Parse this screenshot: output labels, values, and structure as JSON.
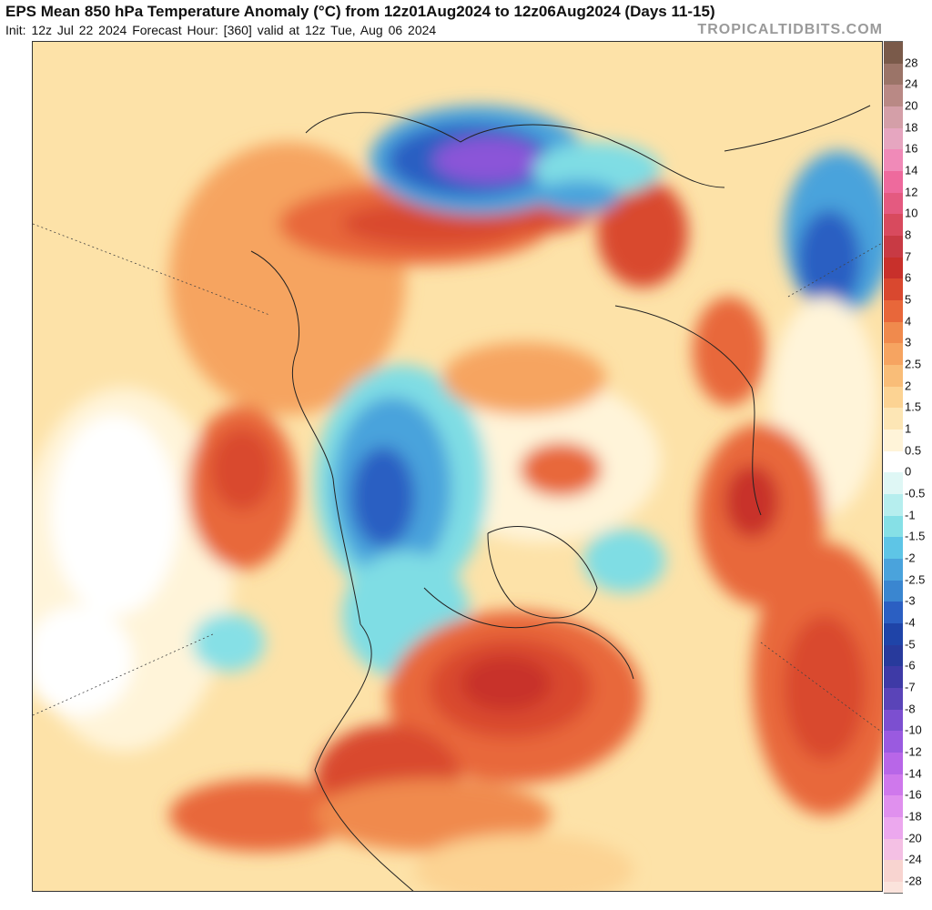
{
  "header": {
    "title": "EPS Mean 850 hPa Temperature Anomaly (°C) from 12z01Aug2024 to 12z06Aug2024 (Days 11-15)",
    "subtitle": "Init: 12z Jul 22 2024   Forecast Hour: [360]   valid at 12z Tue, Aug 06 2024",
    "credit": "TROPICALTIDBITS.COM"
  },
  "colors": {
    "neutral": "#fff4d9",
    "weak_warm": "#fde2a8",
    "warm": "#f6b56b",
    "hot": "#e8673a",
    "very_hot": "#c8302b",
    "weak_cool": "#c9f2f2",
    "cool": "#7fdde4",
    "cold": "#4aa3dc",
    "very_cold": "#2b5fc2",
    "extreme_cold": "#8b54d8"
  },
  "colorbar": {
    "levels": [
      {
        "label": "28",
        "color": "#7a5a4a"
      },
      {
        "label": "24",
        "color": "#9b7468"
      },
      {
        "label": "20",
        "color": "#b98985"
      },
      {
        "label": "18",
        "color": "#d49fa8"
      },
      {
        "label": "16",
        "color": "#e6a6c0"
      },
      {
        "label": "14",
        "color": "#f08ab8"
      },
      {
        "label": "12",
        "color": "#ee6a9d"
      },
      {
        "label": "10",
        "color": "#e45a80"
      },
      {
        "label": "8",
        "color": "#d84a5e"
      },
      {
        "label": "7",
        "color": "#c83a44"
      },
      {
        "label": "6",
        "color": "#c8302b"
      },
      {
        "label": "5",
        "color": "#d9482f"
      },
      {
        "label": "4",
        "color": "#e8673a"
      },
      {
        "label": "3",
        "color": "#f08a4d"
      },
      {
        "label": "2.5",
        "color": "#f6a461"
      },
      {
        "label": "2",
        "color": "#f9bd78"
      },
      {
        "label": "1.5",
        "color": "#fcd393"
      },
      {
        "label": "1",
        "color": "#fde6b5"
      },
      {
        "label": "0.5",
        "color": "#fff4d9"
      },
      {
        "label": "0",
        "color": "#ffffff"
      },
      {
        "label": "-0.5",
        "color": "#dff7f5"
      },
      {
        "label": "-1",
        "color": "#b6eeee"
      },
      {
        "label": "-1.5",
        "color": "#86e0e6"
      },
      {
        "label": "-2",
        "color": "#5ec5e6"
      },
      {
        "label": "-2.5",
        "color": "#4aa3dc"
      },
      {
        "label": "-3",
        "color": "#3a86d0"
      },
      {
        "label": "-4",
        "color": "#2b5fc2"
      },
      {
        "label": "-5",
        "color": "#1f44a8"
      },
      {
        "label": "-6",
        "color": "#283a9c"
      },
      {
        "label": "-7",
        "color": "#3e3aa6"
      },
      {
        "label": "-8",
        "color": "#5a44b8"
      },
      {
        "label": "-10",
        "color": "#7c4fd0"
      },
      {
        "label": "-12",
        "color": "#9a5ae0"
      },
      {
        "label": "-14",
        "color": "#b866e8"
      },
      {
        "label": "-16",
        "color": "#cf78ec"
      },
      {
        "label": "-18",
        "color": "#e090ee"
      },
      {
        "label": "-20",
        "color": "#eca8ee"
      },
      {
        "label": "-24",
        "color": "#f4c0e4"
      },
      {
        "label": "-28",
        "color": "#f8d4d0"
      }
    ]
  }
}
